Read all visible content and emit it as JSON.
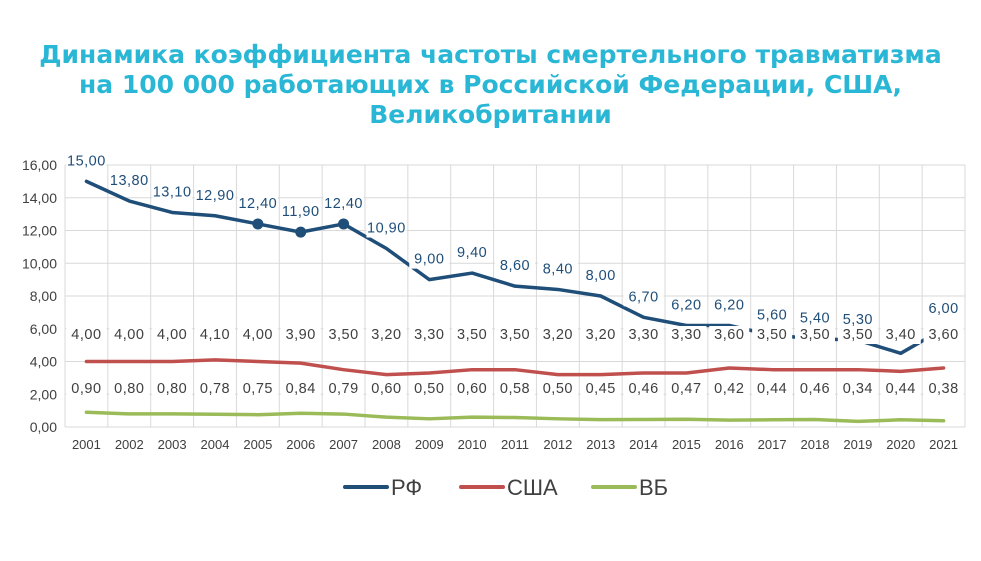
{
  "chart_data": {
    "type": "line",
    "title": "Динамика коэффициента частоты смертельного травматизма\nна 100 000 работающих в Российской Федерации, США,\nВеликобритании",
    "categories": [
      "2001",
      "2002",
      "2003",
      "2004",
      "2005",
      "2006",
      "2007",
      "2008",
      "2009",
      "2010",
      "2011",
      "2012",
      "2013",
      "2014",
      "2015",
      "2016",
      "2017",
      "2018",
      "2019",
      "2020",
      "2021"
    ],
    "ylim": [
      0,
      16
    ],
    "yticks": [
      "0,00",
      "2,00",
      "4,00",
      "6,00",
      "8,00",
      "10,00",
      "12,00",
      "14,00",
      "16,00"
    ],
    "grid": true,
    "legend_position": "bottom",
    "series": [
      {
        "name": "РФ",
        "color": "#1f4e79",
        "values": [
          15.0,
          13.8,
          13.1,
          12.9,
          12.4,
          11.9,
          12.4,
          10.9,
          9.0,
          9.4,
          8.6,
          8.4,
          8.0,
          6.7,
          6.2,
          6.2,
          5.6,
          5.4,
          5.3,
          4.5,
          6.0
        ],
        "labels": [
          "15,00",
          "13,80",
          "13,10",
          "12,90",
          "12,40",
          "11,90",
          "12,40",
          "10,90",
          "9,00",
          "9,40",
          "8,60",
          "8,40",
          "8,00",
          "6,70",
          "6,20",
          "6,20",
          "5,60",
          "5,40",
          "5,30",
          "4,50",
          "6,00"
        ],
        "markers": [
          4,
          5,
          6
        ]
      },
      {
        "name": "США",
        "color": "#c0504d",
        "values": [
          4.0,
          4.0,
          4.0,
          4.1,
          4.0,
          3.9,
          3.5,
          3.2,
          3.3,
          3.5,
          3.5,
          3.2,
          3.2,
          3.3,
          3.3,
          3.6,
          3.5,
          3.5,
          3.5,
          3.4,
          3.6
        ],
        "labels": [
          "4,00",
          "4,00",
          "4,00",
          "4,10",
          "4,00",
          "3,90",
          "3,50",
          "3,20",
          "3,30",
          "3,50",
          "3,50",
          "3,20",
          "3,20",
          "3,30",
          "3,30",
          "3,60",
          "3,50",
          "3,50",
          "3,50",
          "3,40",
          "3,60"
        ]
      },
      {
        "name": "ВБ",
        "color": "#9bbb59",
        "values": [
          0.9,
          0.8,
          0.8,
          0.78,
          0.75,
          0.84,
          0.79,
          0.6,
          0.5,
          0.6,
          0.58,
          0.5,
          0.45,
          0.46,
          0.47,
          0.42,
          0.44,
          0.46,
          0.34,
          0.44,
          0.38
        ],
        "labels": [
          "0,90",
          "0,80",
          "0,80",
          "0,78",
          "0,75",
          "0,84",
          "0,79",
          "0,60",
          "0,50",
          "0,60",
          "0,58",
          "0,50",
          "0,45",
          "0,46",
          "0,47",
          "0,42",
          "0,44",
          "0,46",
          "0,34",
          "0,44",
          "0,38"
        ]
      }
    ]
  }
}
